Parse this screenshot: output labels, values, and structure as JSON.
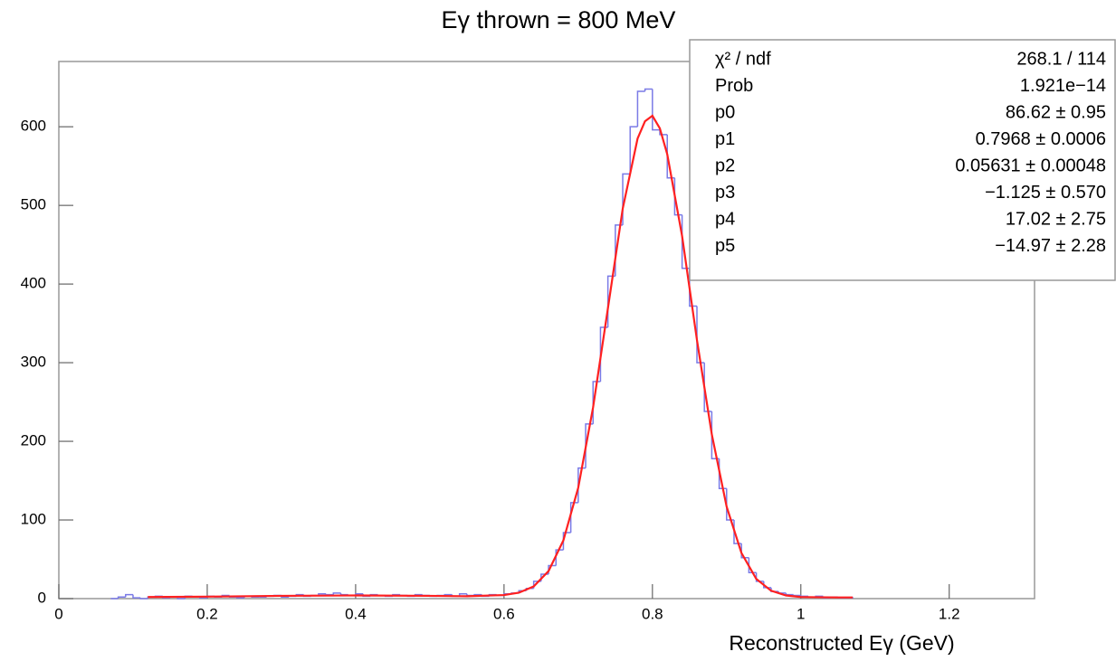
{
  "chart_data": {
    "type": "histogram",
    "title": "Eγ thrown = 800 MeV",
    "x_label": "Reconstructed Eγ (GeV)",
    "color": "#7a7ae6",
    "bins": [
      0.07,
      0.08,
      0.09,
      0.1,
      0.11,
      0.12,
      0.13,
      0.14,
      0.15,
      0.16,
      0.17,
      0.18,
      0.19,
      0.2,
      0.21,
      0.22,
      0.23,
      0.24,
      0.25,
      0.26,
      0.27,
      0.28,
      0.29,
      0.3,
      0.31,
      0.32,
      0.33,
      0.34,
      0.35,
      0.36,
      0.37,
      0.38,
      0.39,
      0.4,
      0.41,
      0.42,
      0.43,
      0.44,
      0.45,
      0.46,
      0.47,
      0.48,
      0.49,
      0.5,
      0.51,
      0.52,
      0.53,
      0.54,
      0.55,
      0.56,
      0.57,
      0.58,
      0.59,
      0.6,
      0.61,
      0.62,
      0.63,
      0.64,
      0.65,
      0.66,
      0.67,
      0.68,
      0.69,
      0.7,
      0.71,
      0.72,
      0.73,
      0.74,
      0.75,
      0.76,
      0.77,
      0.78,
      0.79,
      0.8,
      0.81,
      0.82,
      0.83,
      0.84,
      0.85,
      0.86,
      0.87,
      0.88,
      0.89,
      0.9,
      0.91,
      0.92,
      0.93,
      0.94,
      0.95,
      0.96,
      0.97,
      0.98,
      0.99,
      1.0,
      1.01,
      1.02,
      1.03,
      1.04,
      1.05,
      1.06,
      1.07
    ],
    "values": [
      0,
      2,
      5,
      1,
      0,
      2,
      3,
      1,
      2,
      0,
      3,
      2,
      1,
      3,
      2,
      4,
      2,
      1,
      3,
      2,
      2,
      3,
      4,
      2,
      3,
      5,
      3,
      4,
      6,
      5,
      7,
      5,
      4,
      6,
      3,
      5,
      4,
      3,
      5,
      4,
      3,
      5,
      4,
      3,
      4,
      5,
      3,
      6,
      4,
      5,
      3,
      5,
      4,
      6,
      7,
      10,
      13,
      22,
      31,
      42,
      62,
      84,
      122,
      166,
      222,
      276,
      345,
      410,
      475,
      540,
      600,
      645,
      648,
      596,
      590,
      535,
      488,
      420,
      372,
      300,
      238,
      178,
      140,
      100,
      70,
      52,
      33,
      22,
      14,
      9,
      7,
      5,
      4,
      3,
      2,
      3,
      1,
      2,
      1,
      1
    ],
    "fit": {
      "type": "line",
      "color": "#ff2020",
      "x": [
        0.12,
        0.2,
        0.3,
        0.4,
        0.5,
        0.55,
        0.6,
        0.62,
        0.64,
        0.66,
        0.68,
        0.7,
        0.72,
        0.74,
        0.76,
        0.78,
        0.79,
        0.8,
        0.81,
        0.82,
        0.84,
        0.86,
        0.88,
        0.9,
        0.92,
        0.94,
        0.96,
        0.98,
        1.0,
        1.05,
        1.07
      ],
      "values": [
        2,
        2.5,
        3.5,
        4,
        3.5,
        3,
        4.5,
        7.5,
        15.5,
        35,
        74,
        141,
        243,
        369,
        496,
        585,
        607,
        614,
        598,
        565,
        461,
        329,
        209,
        117,
        58,
        25,
        10,
        4,
        2,
        1.5,
        1.5
      ]
    },
    "xlim": [
      0,
      1.315
    ],
    "ylim": [
      0,
      683
    ],
    "xticks": [
      0,
      0.2,
      0.4,
      0.6,
      0.8,
      1,
      1.2
    ],
    "yticks": [
      0,
      100,
      200,
      300,
      400,
      500,
      600
    ],
    "stats_box": {
      "rows": [
        {
          "label": "χ² / ndf",
          "value": "268.1 / 114"
        },
        {
          "label": "Prob",
          "value": "1.921e−14"
        },
        {
          "label": "p0",
          "value": "86.62 ± 0.95"
        },
        {
          "label": "p1",
          "value": "0.7968 ± 0.0006"
        },
        {
          "label": "p2",
          "value": "0.05631 ± 0.00048"
        },
        {
          "label": "p3",
          "value": "−1.125 ± 0.570"
        },
        {
          "label": "p4",
          "value": "17.02 ± 2.75"
        },
        {
          "label": "p5",
          "value": "−14.97 ± 2.28"
        }
      ]
    }
  }
}
